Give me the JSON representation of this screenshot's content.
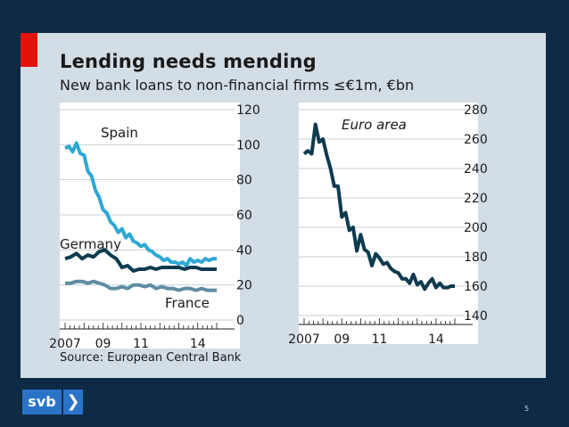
{
  "title": "Lending needs mending",
  "subtitle": "New bank loans to non-financial firms ≤€1m, €bn",
  "source": "Source: European Central Bank",
  "footer": {
    "logo_text": "svb",
    "logo_arrow": "❯",
    "page_number": "5"
  },
  "colors": {
    "spain": "#2fa8d4",
    "germany": "#0e3a4f",
    "france": "#5f8ea2",
    "euro": "#0e3a4f",
    "background": "#0f2a44",
    "card": "#d3dde6",
    "accent": "#e3120b"
  },
  "chart_data": [
    {
      "type": "line",
      "ylim": [
        0,
        120
      ],
      "yticks": [
        0,
        20,
        40,
        60,
        80,
        100,
        120
      ],
      "ytick_labels": [
        "0",
        "20",
        "40",
        "60",
        "80",
        "100",
        "120"
      ],
      "x_labels": [
        "2007",
        "09",
        "11",
        "14"
      ],
      "x_label_values": [
        2007,
        2009,
        2011,
        2014
      ],
      "xlim": [
        2007,
        2015
      ],
      "grid": true,
      "series": [
        {
          "name": "Spain",
          "x": [
            2007.0,
            2007.2,
            2007.4,
            2007.6,
            2007.8,
            2008.0,
            2008.2,
            2008.4,
            2008.6,
            2008.8,
            2009.0,
            2009.2,
            2009.4,
            2009.6,
            2009.8,
            2010.0,
            2010.2,
            2010.4,
            2010.6,
            2010.8,
            2011.0,
            2011.2,
            2011.4,
            2011.6,
            2011.8,
            2012.0,
            2012.2,
            2012.4,
            2012.6,
            2012.8,
            2013.0,
            2013.2,
            2013.4,
            2013.6,
            2013.8,
            2014.0,
            2014.2,
            2014.4,
            2014.6,
            2014.8,
            2015.0
          ],
          "values": [
            98,
            99,
            96,
            101,
            95,
            94,
            85,
            82,
            74,
            70,
            63,
            61,
            56,
            54,
            50,
            52,
            47,
            49,
            45,
            44,
            42,
            43,
            40,
            39,
            37,
            36,
            34,
            35,
            33,
            33,
            32,
            33,
            31,
            35,
            33,
            34,
            33,
            35,
            34,
            35,
            35
          ]
        },
        {
          "name": "Germany",
          "x": [
            2007.0,
            2007.3,
            2007.6,
            2007.9,
            2008.2,
            2008.5,
            2008.8,
            2009.1,
            2009.4,
            2009.7,
            2010.0,
            2010.3,
            2010.6,
            2010.9,
            2011.2,
            2011.5,
            2011.8,
            2012.1,
            2012.4,
            2012.7,
            2013.0,
            2013.3,
            2013.6,
            2013.9,
            2014.2,
            2014.5,
            2014.8,
            2015.0
          ],
          "values": [
            35,
            36,
            38,
            35,
            37,
            36,
            39,
            40,
            37,
            35,
            30,
            31,
            28,
            29,
            29,
            30,
            29,
            30,
            30,
            30,
            30,
            29,
            30,
            30,
            29,
            29,
            29,
            29
          ]
        },
        {
          "name": "France",
          "x": [
            2007.0,
            2007.3,
            2007.6,
            2007.9,
            2008.2,
            2008.5,
            2008.8,
            2009.1,
            2009.4,
            2009.7,
            2010.0,
            2010.3,
            2010.6,
            2010.9,
            2011.2,
            2011.5,
            2011.8,
            2012.1,
            2012.4,
            2012.7,
            2013.0,
            2013.3,
            2013.6,
            2013.9,
            2014.2,
            2014.5,
            2014.8,
            2015.0
          ],
          "values": [
            21,
            21,
            22,
            22,
            21,
            22,
            21,
            20,
            18,
            18,
            19,
            18,
            20,
            20,
            19,
            20,
            18,
            19,
            18,
            18,
            17,
            18,
            18,
            17,
            18,
            17,
            17,
            17
          ]
        }
      ]
    },
    {
      "type": "line",
      "ylim": [
        140,
        280
      ],
      "yticks": [
        140,
        160,
        180,
        200,
        220,
        240,
        260,
        280
      ],
      "ytick_labels": [
        "140",
        "160",
        "180",
        "200",
        "220",
        "240",
        "260",
        "280"
      ],
      "x_labels": [
        "2007",
        "09",
        "11",
        "14"
      ],
      "x_label_values": [
        2007,
        2009,
        2011,
        2014
      ],
      "xlim": [
        2007,
        2015
      ],
      "grid": true,
      "series": [
        {
          "name": "Euro area",
          "x": [
            2007.0,
            2007.2,
            2007.4,
            2007.6,
            2007.8,
            2008.0,
            2008.2,
            2008.4,
            2008.6,
            2008.8,
            2009.0,
            2009.2,
            2009.4,
            2009.6,
            2009.8,
            2010.0,
            2010.2,
            2010.4,
            2010.6,
            2010.8,
            2011.0,
            2011.2,
            2011.4,
            2011.6,
            2011.8,
            2012.0,
            2012.2,
            2012.4,
            2012.6,
            2012.8,
            2013.0,
            2013.2,
            2013.4,
            2013.6,
            2013.8,
            2014.0,
            2014.2,
            2014.4,
            2014.6,
            2014.8,
            2015.0
          ],
          "values": [
            250,
            252,
            250,
            270,
            258,
            260,
            249,
            240,
            228,
            228,
            207,
            210,
            198,
            200,
            184,
            195,
            185,
            183,
            174,
            182,
            179,
            175,
            176,
            172,
            170,
            169,
            165,
            165,
            162,
            168,
            161,
            163,
            158,
            162,
            165,
            159,
            162,
            159,
            159,
            160,
            160
          ]
        }
      ]
    }
  ]
}
